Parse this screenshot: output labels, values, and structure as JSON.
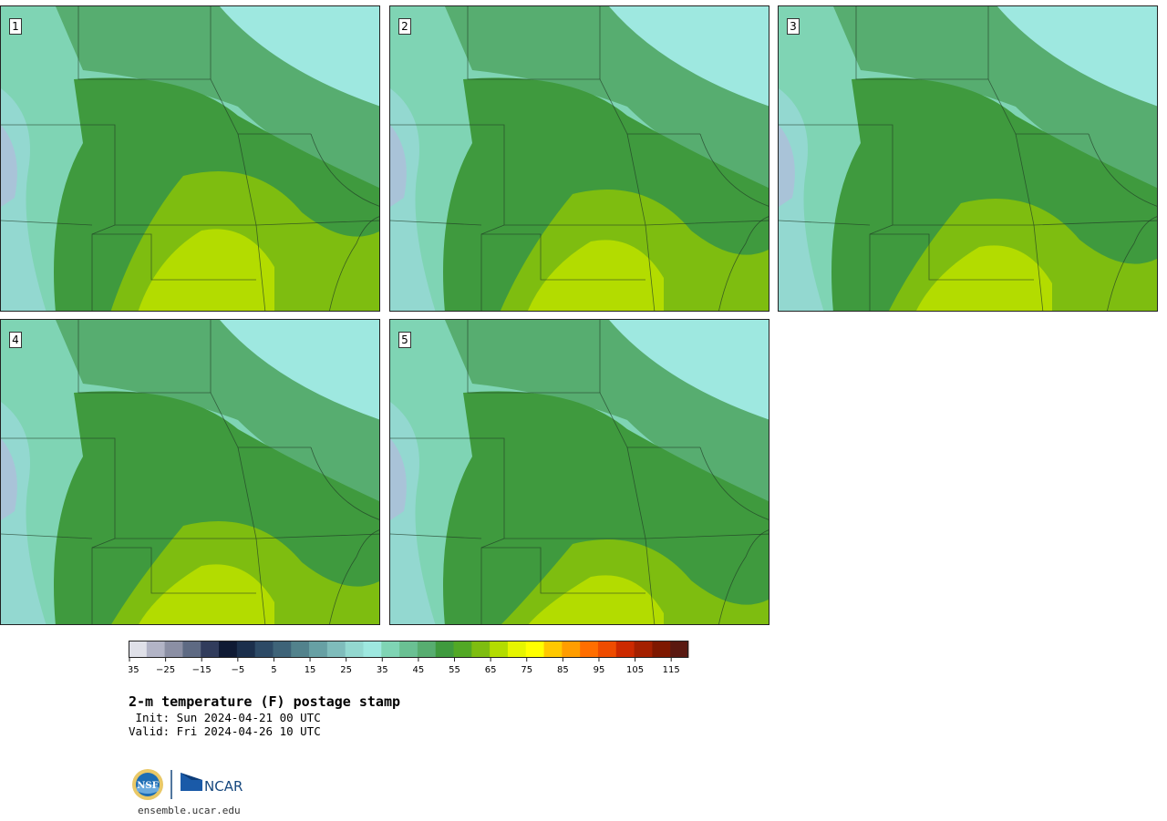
{
  "panels": [
    {
      "label": "1",
      "warmth": 0.75
    },
    {
      "label": "2",
      "warmth": 0.65
    },
    {
      "label": "3",
      "warmth": 0.6
    },
    {
      "label": "4",
      "warmth": 0.55
    },
    {
      "label": "5",
      "warmth": 0.45
    }
  ],
  "colorbar": {
    "colors": [
      "#dfe0e8",
      "#b2b4c6",
      "#8b8fa4",
      "#5e6a83",
      "#313c5c",
      "#0f1a34",
      "#1b2f4c",
      "#2d4a66",
      "#3e6378",
      "#52828c",
      "#67a0a4",
      "#7fbcbb",
      "#93d8d0",
      "#9ee8e0",
      "#7fd4b4",
      "#6ac093",
      "#57ad70",
      "#3f9a3e",
      "#52a825",
      "#7ebd10",
      "#b3dc00",
      "#e6f500",
      "#ffff00",
      "#ffc800",
      "#ff9d00",
      "#ff6e00",
      "#ee4c00",
      "#cc2a00",
      "#a42000",
      "#7e1800",
      "#5a1810"
    ],
    "ticks": [
      "−35",
      "−25",
      "−15",
      "−5",
      "5",
      "15",
      "25",
      "35",
      "45",
      "55",
      "65",
      "75",
      "85",
      "95",
      "105",
      "115"
    ]
  },
  "title": "2-m temperature (F) postage stamp",
  "init": " Init: Sun 2024-04-21 00 UTC",
  "valid": "Valid: Fri 2024-04-26 10 UTC",
  "logos": {
    "nsf": "NSF",
    "ncar": "NCAR"
  },
  "site": "ensemble.ucar.edu"
}
